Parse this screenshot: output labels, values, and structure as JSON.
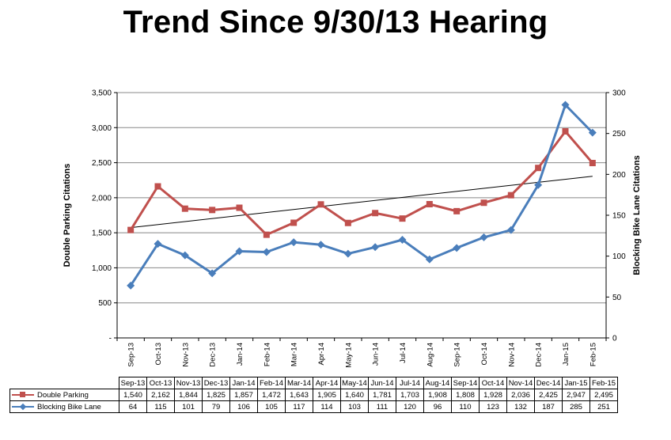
{
  "title": "Trend Since 9/30/13 Hearing",
  "chart_data": {
    "type": "line",
    "categories": [
      "Sep-13",
      "Oct-13",
      "Nov-13",
      "Dec-13",
      "Jan-14",
      "Feb-14",
      "Mar-14",
      "Apr-14",
      "May-14",
      "Jun-14",
      "Jul-14",
      "Aug-14",
      "Sep-14",
      "Oct-14",
      "Nov-14",
      "Dec-14",
      "Jan-15",
      "Feb-15"
    ],
    "series": [
      {
        "name": "Double Parking",
        "axis": "left",
        "color": "#c0504d",
        "marker": "square",
        "values": [
          1540,
          2162,
          1844,
          1825,
          1857,
          1472,
          1643,
          1905,
          1640,
          1781,
          1703,
          1908,
          1808,
          1928,
          2036,
          2425,
          2947,
          2495
        ],
        "labels": [
          "1,540",
          "2,162",
          "1,844",
          "1,825",
          "1,857",
          "1,472",
          "1,643",
          "1,905",
          "1,640",
          "1,781",
          "1,703",
          "1,908",
          "1,808",
          "1,928",
          "2,036",
          "2,425",
          "2,947",
          "2,495"
        ]
      },
      {
        "name": "Blocking Bike Lane",
        "axis": "right",
        "color": "#4a7ebb",
        "marker": "diamond",
        "values": [
          64,
          115,
          101,
          79,
          106,
          105,
          117,
          114,
          103,
          111,
          120,
          96,
          110,
          123,
          132,
          187,
          285,
          251
        ],
        "labels": [
          "64",
          "115",
          "101",
          "79",
          "106",
          "105",
          "117",
          "114",
          "103",
          "111",
          "120",
          "96",
          "110",
          "123",
          "132",
          "187",
          "285",
          "251"
        ]
      }
    ],
    "trendline": {
      "series": "Double Parking",
      "type": "linear",
      "color": "#000000"
    },
    "ylabel": "Double Parking Citations",
    "y2label": "Blocking Bike Lane Citations",
    "ylim": [
      0,
      3500
    ],
    "y2lim": [
      0,
      300
    ],
    "yticks": [
      "-",
      "500",
      "1,000",
      "1,500",
      "2,000",
      "2,500",
      "3,000",
      "3,500"
    ],
    "y2ticks": [
      "0",
      "50",
      "100",
      "150",
      "200",
      "250",
      "300"
    ],
    "grid": true,
    "legend": "data-table-below"
  }
}
